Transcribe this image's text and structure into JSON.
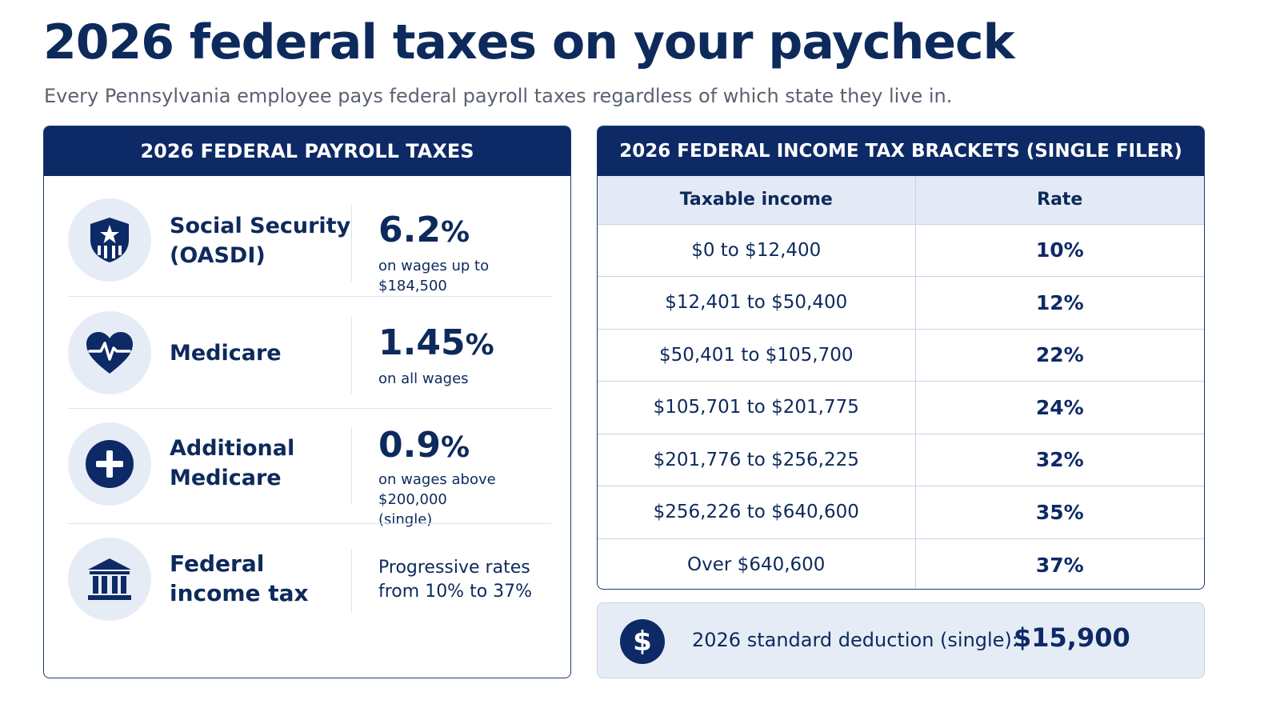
{
  "header": {
    "title": "2026 federal taxes on your paycheck",
    "subtitle": "Every Pennsylvania employee pays federal payroll taxes regardless of which state they live in."
  },
  "payroll": {
    "heading": "2026 FEDERAL PAYROLL TAXES",
    "items": [
      {
        "icon": "shield-star-icon",
        "name_line1": "Social Security",
        "name_line2": "(OASDI)",
        "rate_num": "6.2",
        "rate_pct": "%",
        "note_line1": "on wages up to $184,500",
        "note_line2": ""
      },
      {
        "icon": "heart-pulse-icon",
        "name_line1": "Medicare",
        "name_line2": "",
        "rate_num": "1.45",
        "rate_pct": "%",
        "note_line1": "on all wages",
        "note_line2": ""
      },
      {
        "icon": "plus-circle-icon",
        "name_line1": "Additional",
        "name_line2": "Medicare",
        "rate_num": "0.9",
        "rate_pct": "%",
        "note_line1": "on wages above $200,000",
        "note_line2": "(single)"
      },
      {
        "icon": "bank-building-icon",
        "name_line1": "Federal",
        "name_line2": "income tax",
        "rate_text_line1": "Progressive rates",
        "rate_text_line2": "from 10% to 37%"
      }
    ]
  },
  "brackets": {
    "heading": "2026 FEDERAL INCOME TAX BRACKETS (SINGLE FILER)",
    "columns": [
      "Taxable income",
      "Rate"
    ],
    "rows": [
      {
        "income": "$0 to $12,400",
        "rate": "10%"
      },
      {
        "income": "$12,401 to $50,400",
        "rate": "12%"
      },
      {
        "income": "$50,401 to $105,700",
        "rate": "22%"
      },
      {
        "income": "$105,701 to $201,775",
        "rate": "24%"
      },
      {
        "income": "$201,776 to $256,225",
        "rate": "32%"
      },
      {
        "income": "$256,226 to $640,600",
        "rate": "35%"
      },
      {
        "income": "Over $640,600",
        "rate": "37%"
      }
    ]
  },
  "deduction": {
    "icon": "dollar-icon",
    "symbol": "$",
    "label": "2026 standard deduction (single):",
    "value": "$15,900"
  },
  "colors": {
    "navy": "#0d2a66",
    "text": "#0d2a5c",
    "light_blue": "#e6ecf6",
    "subtitle_gray": "#5a6270"
  }
}
